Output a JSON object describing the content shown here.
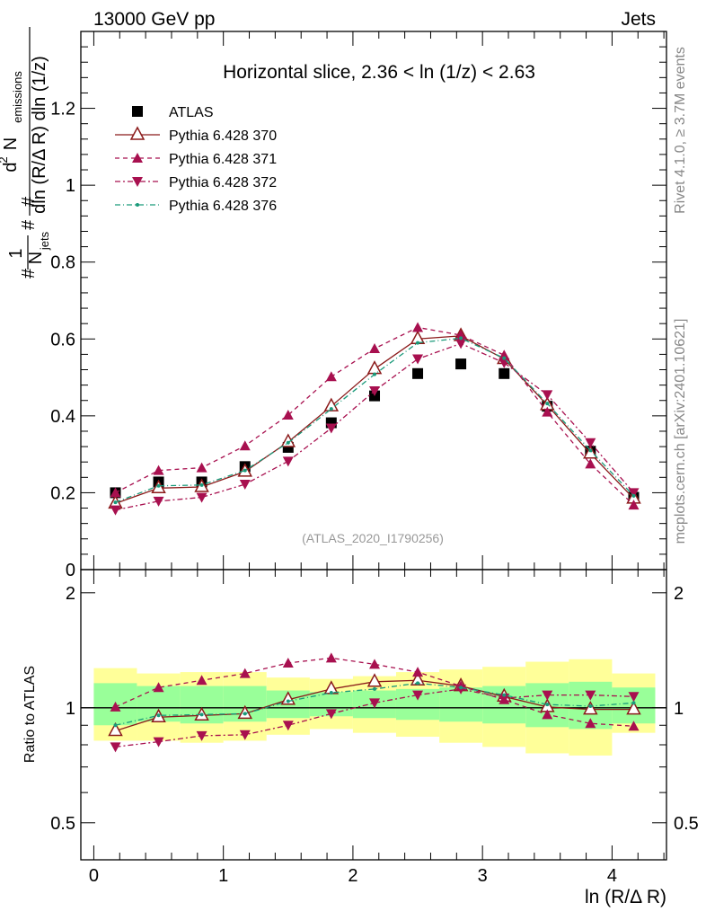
{
  "header": {
    "left": "13000 GeV pp",
    "right": "Jets"
  },
  "side_text": {
    "rivet": "Rivet 4.1.0, ≥ 3.7M events",
    "mcplots": "mcplots.cern.ch [arXiv:2401.10621]"
  },
  "chart_data": [
    {
      "type": "scatter",
      "title": "Horizontal slice, 2.36 < ln (1/z) < 2.63",
      "watermark": "(ATLAS_2020_I1790256)",
      "xlabel": "ln (R/Δ R)",
      "ylabel_parts": {
        "frac1_num": "1",
        "frac1_den": "N",
        "frac1_den_sub": "jets",
        "frac2_num": "d",
        "frac2_num_sup": "2",
        "frac2_num_main": " N",
        "frac2_num_sub": "emissions",
        "frac2_den": "dln (R/Δ R) dln (1/z)",
        "hash1": "#",
        "hash2": "#",
        "hash3": "#"
      },
      "xlim": [
        -0.1,
        4.42
      ],
      "ylim": [
        0,
        1.4
      ],
      "yticks": [
        0,
        0.2,
        0.4,
        0.6,
        0.8,
        1,
        1.2
      ],
      "ytick_labels": [
        "0",
        "0.2",
        "0.4",
        "0.6",
        "0.8",
        "1",
        "1.2"
      ],
      "x": [
        0.167,
        0.5,
        0.833,
        1.167,
        1.5,
        1.833,
        2.167,
        2.5,
        2.833,
        3.167,
        3.5,
        3.833,
        4.167
      ],
      "series": [
        {
          "name": "ATLAS",
          "values": [
            0.2,
            0.228,
            0.228,
            0.268,
            0.318,
            0.382,
            0.452,
            0.51,
            0.535,
            0.51,
            0.425,
            0.308,
            0.188
          ]
        },
        {
          "name": "Pythia 6.428 370",
          "values": [
            0.172,
            0.212,
            0.215,
            0.255,
            0.332,
            0.425,
            0.522,
            0.6,
            0.608,
            0.548,
            0.428,
            0.302,
            0.185
          ]
        },
        {
          "name": "Pythia 6.428 371",
          "values": [
            0.2,
            0.258,
            0.265,
            0.322,
            0.402,
            0.502,
            0.575,
            0.63,
            0.61,
            0.558,
            0.41,
            0.275,
            0.168
          ]
        },
        {
          "name": "Pythia 6.428 372",
          "values": [
            0.155,
            0.178,
            0.188,
            0.222,
            0.282,
            0.368,
            0.465,
            0.548,
            0.588,
            0.538,
            0.455,
            0.33,
            0.2
          ]
        },
        {
          "name": "Pythia 6.428 376",
          "values": [
            0.175,
            0.218,
            0.22,
            0.258,
            0.33,
            0.418,
            0.508,
            0.59,
            0.602,
            0.55,
            0.432,
            0.31,
            0.192
          ]
        }
      ],
      "legend": [
        "ATLAS",
        "Pythia 6.428 370",
        "Pythia 6.428 371",
        "Pythia 6.428 372",
        "Pythia 6.428 376"
      ],
      "colors": [
        "#000000",
        "#8b1a1a",
        "#a8104f",
        "#a8104f",
        "#1a9a7a"
      ]
    },
    {
      "type": "scatter",
      "title": "",
      "ylabel": "Ratio to ATLAS",
      "xlabel": "ln (R/Δ R)",
      "yscale": "log",
      "ylim": [
        0.4,
        2.3
      ],
      "yticks": [
        0.5,
        1,
        2
      ],
      "ytick_labels": [
        "0.5",
        "1",
        "2"
      ],
      "xticks": [
        0,
        1,
        2,
        3,
        4
      ],
      "xtick_labels": [
        "0",
        "1",
        "2",
        "3",
        "4"
      ],
      "bin_edges": [
        0,
        0.333,
        0.667,
        1.0,
        1.333,
        1.667,
        2.0,
        2.333,
        2.667,
        3.0,
        3.333,
        3.667,
        4.0,
        4.333
      ],
      "band_yellow": [
        [
          0.82,
          1.27
        ],
        [
          0.82,
          1.23
        ],
        [
          0.81,
          1.24
        ],
        [
          0.82,
          1.24
        ],
        [
          0.85,
          1.2
        ],
        [
          0.88,
          1.19
        ],
        [
          0.86,
          1.21
        ],
        [
          0.84,
          1.24
        ],
        [
          0.81,
          1.26
        ],
        [
          0.79,
          1.28
        ],
        [
          0.76,
          1.32
        ],
        [
          0.75,
          1.34
        ],
        [
          0.86,
          1.23
        ]
      ],
      "band_green": [
        [
          0.9,
          1.16
        ],
        [
          0.92,
          1.14
        ],
        [
          0.91,
          1.14
        ],
        [
          0.92,
          1.14
        ],
        [
          0.94,
          1.11
        ],
        [
          0.95,
          1.1
        ],
        [
          0.94,
          1.11
        ],
        [
          0.93,
          1.12
        ],
        [
          0.92,
          1.13
        ],
        [
          0.91,
          1.14
        ],
        [
          0.89,
          1.16
        ],
        [
          0.88,
          1.17
        ],
        [
          0.91,
          1.13
        ]
      ],
      "series": [
        {
          "name": "Pythia 6.428 370",
          "values": [
            0.87,
            0.945,
            0.955,
            0.965,
            1.05,
            1.12,
            1.17,
            1.18,
            1.14,
            1.07,
            1.005,
            0.99,
            0.99
          ]
        },
        {
          "name": "Pythia 6.428 371",
          "values": [
            1.005,
            1.13,
            1.18,
            1.23,
            1.31,
            1.35,
            1.3,
            1.24,
            1.14,
            1.05,
            0.96,
            0.91,
            0.895
          ]
        },
        {
          "name": "Pythia 6.428 372",
          "values": [
            0.79,
            0.815,
            0.845,
            0.85,
            0.9,
            0.965,
            1.03,
            1.08,
            1.12,
            1.06,
            1.08,
            1.08,
            1.07
          ]
        },
        {
          "name": "Pythia 6.428 376",
          "values": [
            0.9,
            0.955,
            0.96,
            0.965,
            1.04,
            1.095,
            1.12,
            1.16,
            1.13,
            1.08,
            1.02,
            1.01,
            1.03
          ]
        }
      ]
    }
  ]
}
